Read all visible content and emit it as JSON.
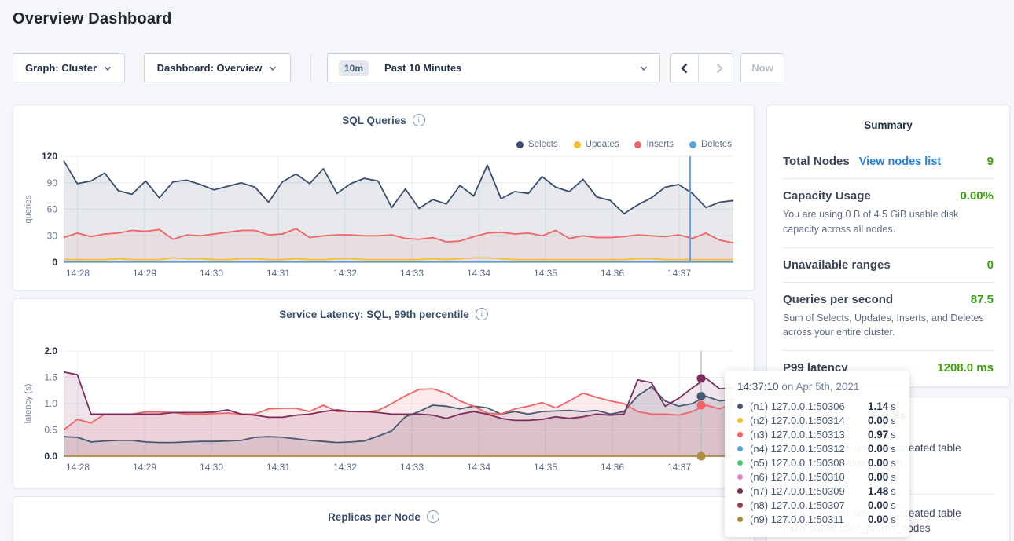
{
  "page": {
    "title": "Overview Dashboard"
  },
  "toolbar": {
    "graph_label": "Graph: Cluster",
    "dashboard_label": "Dashboard: Overview",
    "time_badge": "10m",
    "time_range_label": "Past 10 Minutes",
    "now_label": "Now"
  },
  "summary": {
    "title": "Summary",
    "total_nodes_label": "Total Nodes",
    "view_nodes_link": "View nodes list",
    "total_nodes_value": "9",
    "capacity_label": "Capacity Usage",
    "capacity_value": "0.00%",
    "capacity_desc": "You are using 0 B of 4.5 GiB usable disk capacity across all nodes.",
    "unavailable_label": "Unavailable ranges",
    "unavailable_value": "0",
    "qps_label": "Queries per second",
    "qps_value": "87.5",
    "qps_desc": "Sum of Selects, Updates, Inserts, and Deletes across your entire cluster.",
    "p99_label": "P99 latency",
    "p99_value": "1208.0 ms",
    "accent_green": "#3da10f",
    "link_blue": "#2a7de1"
  },
  "events": {
    "title": "Events",
    "items": [
      {
        "line1": "Table Created: user root created table",
        "line2": "movr.public.promo_codes"
      },
      {
        "line1": "Table Created: user root created table",
        "line2": "movr.public.user_promo_codes"
      }
    ]
  },
  "tooltip": {
    "time": "14:37:10",
    "date_suffix": " on Apr 5th, 2021",
    "rows": [
      {
        "color": "#475872",
        "label": "(n1) 127.0.0.1:50306",
        "value": "1.14",
        "unit": "s"
      },
      {
        "color": "#f5bd2b",
        "label": "(n2) 127.0.0.1:50314",
        "value": "0.00",
        "unit": "s"
      },
      {
        "color": "#ef6567",
        "label": "(n3) 127.0.0.1:50313",
        "value": "0.97",
        "unit": "s"
      },
      {
        "color": "#55a3df",
        "label": "(n4) 127.0.0.1:50312",
        "value": "0.00",
        "unit": "s"
      },
      {
        "color": "#4dc87a",
        "label": "(n5) 127.0.0.1:50308",
        "value": "0.00",
        "unit": "s"
      },
      {
        "color": "#d884c5",
        "label": "(n6) 127.0.0.1:50310",
        "value": "0.00",
        "unit": "s"
      },
      {
        "color": "#702d50",
        "label": "(n7) 127.0.0.1:50309",
        "value": "1.48",
        "unit": "s"
      },
      {
        "color": "#a23b49",
        "label": "(n8) 127.0.0.1:50307",
        "value": "0.00",
        "unit": "s"
      },
      {
        "color": "#b08c3e",
        "label": "(n9) 127.0.0.1:50311",
        "value": "0.00",
        "unit": "s"
      }
    ]
  },
  "chart_data": [
    {
      "type": "line",
      "title": "SQL Queries",
      "ylabel": "queries",
      "ylim": [
        0,
        120
      ],
      "yticks": [
        0,
        30,
        60,
        90,
        120
      ],
      "x_ticks": [
        "14:28",
        "14:29",
        "14:30",
        "14:31",
        "14:32",
        "14:33",
        "14:34",
        "14:35",
        "14:36",
        "14:37"
      ],
      "grid": true,
      "legend_position": "top-right",
      "crosshair_time": "14:37:10",
      "series": [
        {
          "name": "Selects",
          "color": "#394d6d",
          "values": [
            115,
            89,
            92,
            101,
            81,
            77,
            92,
            73,
            91,
            93,
            88,
            82,
            86,
            90,
            85,
            68,
            91,
            100,
            89,
            106,
            78,
            89,
            95,
            92,
            62,
            83,
            61,
            71,
            66,
            87,
            75,
            110,
            72,
            80,
            78,
            97,
            85,
            80,
            94,
            74,
            70,
            55,
            65,
            73,
            85,
            88,
            78,
            62,
            68,
            70
          ]
        },
        {
          "name": "Updates",
          "color": "#f5bd2b",
          "values": [
            3,
            3,
            3,
            3,
            4,
            3,
            3,
            3,
            5,
            4,
            4,
            3,
            3,
            4,
            4,
            3,
            3,
            4,
            3,
            3,
            4,
            4,
            3,
            3,
            3,
            3,
            3,
            4,
            3,
            4,
            5,
            5,
            4,
            3,
            3,
            3,
            3,
            3,
            3,
            3,
            3,
            3,
            4,
            4,
            3,
            3,
            3,
            3,
            3,
            3
          ]
        },
        {
          "name": "Inserts",
          "color": "#ef6567",
          "values": [
            28,
            33,
            29,
            32,
            33,
            36,
            35,
            37,
            26,
            31,
            30,
            32,
            34,
            36,
            36,
            31,
            32,
            38,
            28,
            30,
            31,
            31,
            30,
            30,
            31,
            27,
            26,
            28,
            23,
            24,
            29,
            33,
            34,
            32,
            33,
            30,
            36,
            27,
            30,
            28,
            28,
            29,
            31,
            30,
            29,
            31,
            27,
            33,
            25,
            22
          ]
        },
        {
          "name": "Deletes",
          "color": "#55a3df",
          "values": [
            0.5,
            0.5,
            0.5,
            0.5,
            0.5,
            0.5,
            0.5,
            0.5,
            0.5,
            0.5,
            0.5,
            0.5,
            0.5,
            0.5,
            0.5,
            0.5,
            0.5,
            0.5,
            0.5,
            0.5,
            0.5,
            0.5,
            0.5,
            0.5,
            0.5,
            0.5,
            0.5,
            0.5,
            0.5,
            0.5,
            0.5,
            0.5,
            0.5,
            0.5,
            0.5,
            0.5,
            0.5,
            0.5,
            0.5,
            0.5,
            0.5,
            0.5,
            0.5,
            0.5,
            0.5,
            0.5,
            0.5,
            0.5,
            0.5,
            0.5
          ]
        }
      ]
    },
    {
      "type": "line",
      "title": "Service Latency: SQL, 99th percentile",
      "ylabel": "latency (s)",
      "ylim": [
        0,
        2.0
      ],
      "yticks": [
        0.0,
        0.5,
        1.0,
        1.5,
        2.0
      ],
      "x_ticks": [
        "14:28",
        "14:29",
        "14:30",
        "14:31",
        "14:32",
        "14:33",
        "14:34",
        "14:35",
        "14:36",
        "14:37"
      ],
      "grid": true,
      "crosshair_time": "14:37:10",
      "series": [
        {
          "name": "(n1) 127.0.0.1:50306",
          "color": "#475872",
          "values": [
            0.37,
            0.36,
            0.27,
            0.29,
            0.3,
            0.3,
            0.27,
            0.26,
            0.26,
            0.27,
            0.28,
            0.28,
            0.29,
            0.3,
            0.36,
            0.37,
            0.36,
            0.33,
            0.3,
            0.28,
            0.26,
            0.27,
            0.29,
            0.38,
            0.48,
            0.75,
            0.85,
            0.97,
            0.95,
            0.9,
            0.95,
            0.92,
            0.8,
            0.85,
            0.8,
            0.85,
            0.86,
            0.87,
            0.85,
            0.87,
            0.8,
            0.85,
            1.15,
            1.32,
            1.05,
            0.95,
            1.0,
            1.14,
            1.05,
            1.08
          ]
        },
        {
          "name": "(n3) 127.0.0.1:50313",
          "color": "#ef6567",
          "values": [
            0.5,
            0.7,
            0.63,
            0.8,
            0.8,
            0.8,
            0.84,
            0.84,
            0.83,
            0.8,
            0.8,
            0.81,
            0.82,
            0.8,
            0.8,
            0.9,
            0.91,
            0.91,
            0.85,
            0.97,
            0.85,
            0.85,
            0.84,
            0.87,
            1.0,
            1.15,
            1.27,
            1.28,
            1.2,
            1.05,
            0.95,
            0.82,
            0.8,
            0.9,
            0.95,
            1.02,
            0.92,
            1.05,
            1.2,
            1.12,
            1.05,
            1.0,
            0.85,
            0.8,
            0.8,
            0.78,
            0.85,
            0.97,
            0.9,
            1.0
          ]
        },
        {
          "name": "(n7) 127.0.0.1:50309",
          "color": "#7b2d5e",
          "values": [
            1.6,
            1.55,
            0.8,
            0.8,
            0.8,
            0.8,
            0.8,
            0.8,
            0.83,
            0.83,
            0.83,
            0.84,
            0.88,
            0.8,
            0.78,
            0.74,
            0.74,
            0.78,
            0.8,
            0.85,
            0.88,
            0.85,
            0.85,
            0.83,
            0.8,
            0.8,
            0.8,
            0.78,
            0.72,
            0.8,
            0.85,
            0.8,
            0.72,
            0.68,
            0.68,
            0.7,
            0.75,
            0.72,
            0.75,
            0.8,
            0.78,
            0.8,
            1.45,
            1.4,
            0.95,
            1.1,
            1.3,
            1.48,
            1.28,
            1.3
          ]
        },
        {
          "name": "(n9) 127.0.0.1:50311",
          "color": "#b08c3e",
          "values": [
            0,
            0,
            0,
            0,
            0,
            0,
            0,
            0,
            0,
            0,
            0,
            0,
            0,
            0,
            0,
            0,
            0,
            0,
            0,
            0,
            0,
            0,
            0,
            0,
            0,
            0,
            0,
            0,
            0,
            0,
            0,
            0,
            0,
            0,
            0,
            0,
            0,
            0,
            0,
            0,
            0,
            0,
            0,
            0,
            0,
            0,
            0,
            0,
            0,
            0
          ]
        }
      ],
      "crosshair_dots": [
        {
          "color": "#475872",
          "value": 1.14
        },
        {
          "color": "#ef6567",
          "value": 0.97
        },
        {
          "color": "#7b2d5e",
          "value": 1.48
        },
        {
          "color": "#b08c3e",
          "value": 0.0
        }
      ]
    },
    {
      "type": "line",
      "title": "Replicas per Node"
    }
  ]
}
